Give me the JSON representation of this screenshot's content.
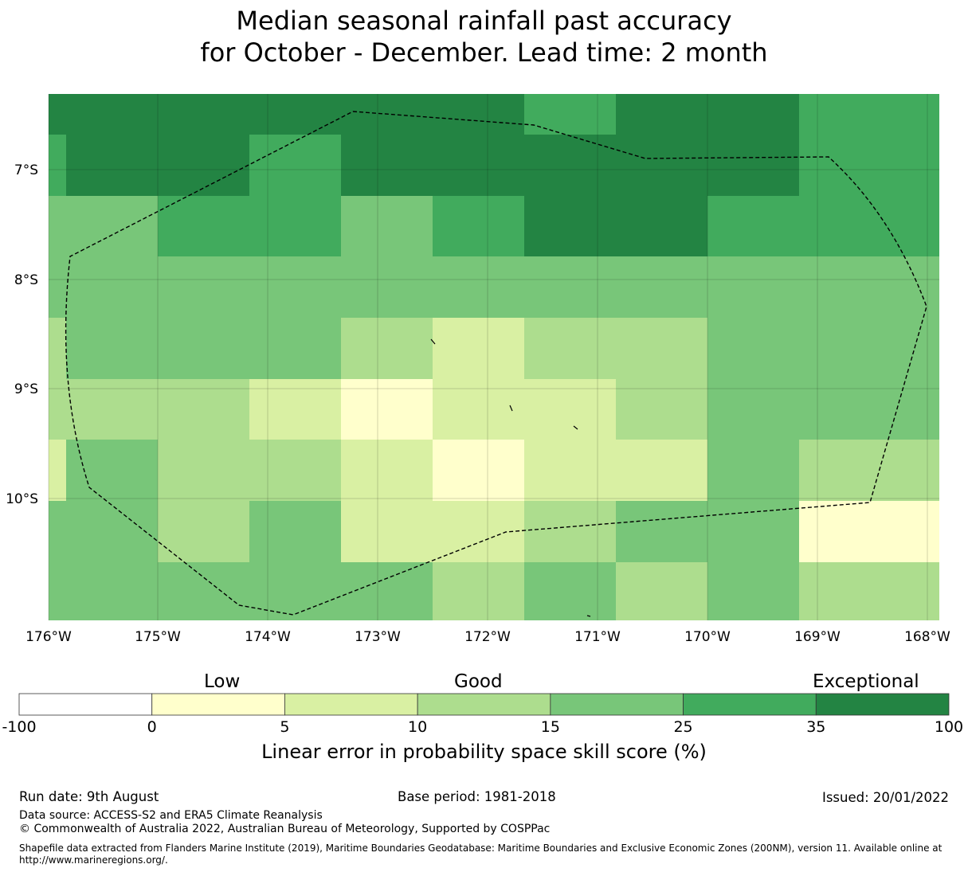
{
  "title_line1": "Median seasonal rainfall past accuracy",
  "title_line2": "for October - December. Lead time: 2 month",
  "map": {
    "lat_ticks": [
      "7°S",
      "8°S",
      "9°S",
      "10°S"
    ],
    "lon_ticks": [
      "176°W",
      "175°W",
      "174°W",
      "173°W",
      "172°W",
      "171°W",
      "170°W",
      "169°W",
      "168°W"
    ],
    "grid_colors": [
      [
        "#238443",
        "#238443",
        "#238443",
        "#238443",
        "#238443",
        "#238443",
        "#41ab5d",
        "#238443",
        "#238443",
        "#41ab5d"
      ],
      [
        "#41ab5d",
        "#238443",
        "#238443",
        "#41ab5d",
        "#238443",
        "#238443",
        "#238443",
        "#238443",
        "#238443",
        "#41ab5d"
      ],
      [
        "#78c679",
        "#78c679",
        "#41ab5d",
        "#41ab5d",
        "#78c679",
        "#41ab5d",
        "#238443",
        "#238443",
        "#41ab5d",
        "#41ab5d"
      ],
      [
        "#78c679",
        "#78c679",
        "#78c679",
        "#78c679",
        "#78c679",
        "#78c679",
        "#78c679",
        "#78c679",
        "#78c679",
        "#78c679"
      ],
      [
        "#addd8e",
        "#78c679",
        "#78c679",
        "#78c679",
        "#addd8e",
        "#d9f0a3",
        "#addd8e",
        "#addd8e",
        "#78c679",
        "#78c679"
      ],
      [
        "#addd8e",
        "#addd8e",
        "#addd8e",
        "#d9f0a3",
        "#ffffcc",
        "#d9f0a3",
        "#d9f0a3",
        "#addd8e",
        "#78c679",
        "#78c679"
      ],
      [
        "#d9f0a3",
        "#78c679",
        "#addd8e",
        "#addd8e",
        "#d9f0a3",
        "#ffffcc",
        "#d9f0a3",
        "#d9f0a3",
        "#78c679",
        "#addd8e"
      ],
      [
        "#78c679",
        "#78c679",
        "#addd8e",
        "#78c679",
        "#d9f0a3",
        "#d9f0a3",
        "#addd8e",
        "#78c679",
        "#78c679",
        "#ffffcc"
      ],
      [
        "#78c679",
        "#78c679",
        "#78c679",
        "#78c679",
        "#78c679",
        "#addd8e",
        "#78c679",
        "#addd8e",
        "#78c679",
        "#addd8e"
      ]
    ]
  },
  "colorbar": {
    "categories": [
      "Low",
      "Good",
      "Exceptional"
    ],
    "bins": [
      {
        "from": "-100",
        "to": "0",
        "color": "#ffffff"
      },
      {
        "from": "0",
        "to": "5",
        "color": "#ffffcc"
      },
      {
        "from": "5",
        "to": "10",
        "color": "#d9f0a3"
      },
      {
        "from": "10",
        "to": "15",
        "color": "#addd8e"
      },
      {
        "from": "15",
        "to": "25",
        "color": "#78c679"
      },
      {
        "from": "25",
        "to": "35",
        "color": "#41ab5d"
      },
      {
        "from": "35",
        "to": "100",
        "color": "#238443"
      }
    ],
    "ticks": [
      "-100",
      "0",
      "5",
      "10",
      "15",
      "25",
      "35",
      "100"
    ],
    "label": "Linear error in probability space skill score (%)"
  },
  "footer": {
    "run_date": "Run date: 9th August",
    "base_period": "Base period: 1981-2018",
    "issued": "Issued: 20/01/2022",
    "data_source": "Data source: ACCESS-S2 and ERA5 Climate Reanalysis",
    "copyright": "© Commonwealth of Australia 2022, Australian Bureau of Meteorology, Supported by COSPPac",
    "shapefile": "Shapefile data extracted from Flanders Marine Institute (2019), Maritime Boundaries Geodatabase: Maritime Boundaries and Exclusive Economic Zones (200NM), version 11. Available online at http://www.marineregions.org/."
  }
}
